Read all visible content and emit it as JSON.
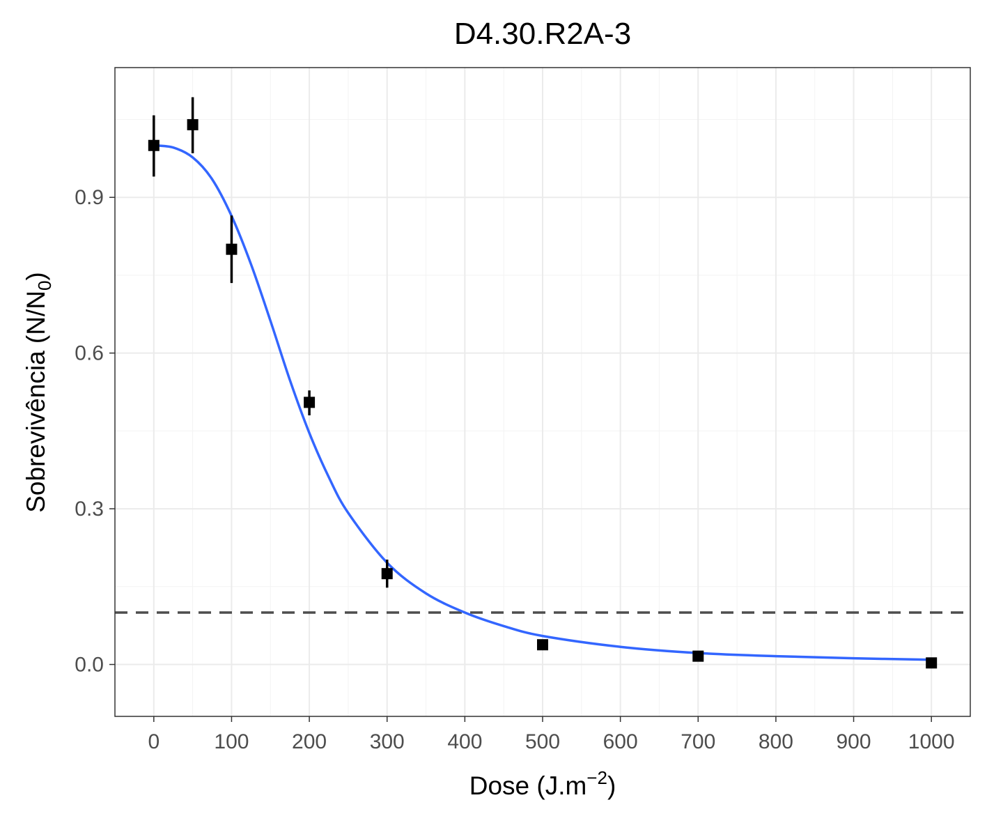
{
  "chart_data": {
    "type": "scatter",
    "title": "D4.30.R2A-3",
    "xlabel": {
      "main": "Dose (J.m",
      "sup": "−2",
      "tail": ")"
    },
    "ylabel": {
      "main": "Sobrevivência (N/N",
      "sub": "0",
      "tail": ")"
    },
    "xlim": [
      -50,
      1050
    ],
    "ylim": [
      -0.1,
      1.15
    ],
    "xticks": [
      0,
      100,
      200,
      300,
      400,
      500,
      600,
      700,
      800,
      900,
      1000
    ],
    "yticks": [
      0.0,
      0.3,
      0.6,
      0.9
    ],
    "ytick_labels": [
      "0.0",
      "0.3",
      "0.6",
      "0.9"
    ],
    "grid": true,
    "series": [
      {
        "kind": "points_with_errorbars",
        "color": "#000000",
        "x": [
          0,
          50,
          100,
          200,
          300,
          500,
          700,
          1000
        ],
        "y": [
          1.0,
          1.04,
          0.8,
          0.505,
          0.175,
          0.038,
          0.016,
          0.003
        ],
        "ymin": [
          0.94,
          0.985,
          0.735,
          0.48,
          0.148,
          0.038,
          0.016,
          0.003
        ],
        "ymax": [
          1.058,
          1.093,
          0.865,
          0.528,
          0.202,
          0.038,
          0.016,
          0.003
        ]
      },
      {
        "kind": "fit_curve",
        "color": "#3366ff",
        "x": [
          0,
          25,
          50,
          75,
          100,
          125,
          150,
          175,
          200,
          225,
          250,
          300,
          350,
          400,
          450,
          500,
          600,
          700,
          800,
          900,
          1000
        ],
        "y": [
          1.0,
          0.996,
          0.977,
          0.935,
          0.864,
          0.771,
          0.662,
          0.548,
          0.446,
          0.361,
          0.292,
          0.196,
          0.137,
          0.1,
          0.074,
          0.055,
          0.034,
          0.022,
          0.016,
          0.012,
          0.009
        ]
      }
    ],
    "reference_line": {
      "y": 0.1,
      "style": "dashed",
      "color": "#4d4d4d"
    }
  }
}
